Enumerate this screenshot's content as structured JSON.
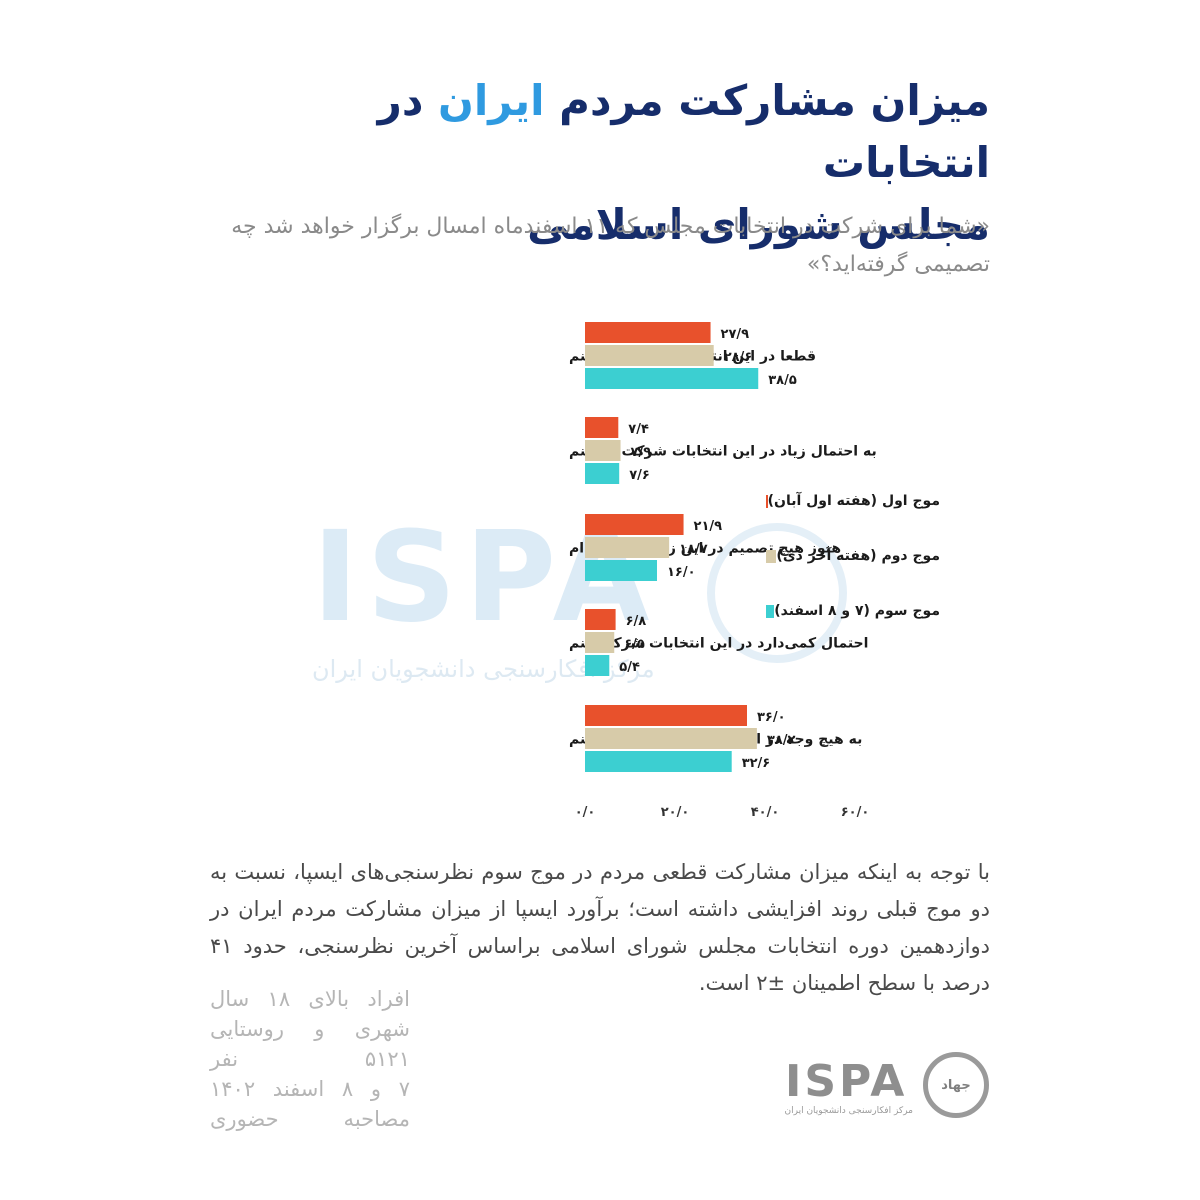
{
  "header": {
    "title_part1": "میزان مشارکت مردم ",
    "title_highlight": "ایران",
    "title_part2": " در انتخابات",
    "title_line2": "مجلس شورای اسلامی",
    "question": "«شما برای شرکت در انتخابات مجلس که ۱۱ اسفندماه امسال برگزار خواهد شد چه تصمیمی گرفته‌اید؟»"
  },
  "watermark": {
    "letters": "ISPA",
    "subtitle": "مرکز افکارسنجی دانشجویان ایران"
  },
  "chart_data": {
    "type": "bar",
    "orientation": "horizontal",
    "categories": [
      "قطعا در این انتخابات شرکت می‌کنم",
      "به احتمال زیاد در این انتخابات شرکت می‌کنم",
      "هنوز هیچ تصمیم در این زمینه نگرفته ام",
      "احتمال کمی‌دارد در این انتخابات شرکت کنم",
      "به هیچ وجه در این انتخابات شرکت نمی‌کنم"
    ],
    "series": [
      {
        "name": "موج اول (هفته اول آبان)",
        "color": "#e8512c",
        "values": [
          27.9,
          7.4,
          21.9,
          6.8,
          36.0
        ],
        "labels": [
          "۲۷/۹",
          "۷/۴",
          "۲۱/۹",
          "۶/۸",
          "۳۶/۰"
        ]
      },
      {
        "name": "موج دوم (هفته آخر دی)",
        "color": "#d7cba9",
        "values": [
          28.6,
          7.9,
          18.7,
          6.5,
          38.2
        ],
        "labels": [
          "۲۸/۶",
          "۷/۹",
          "۱۸/۷",
          "۶/۵",
          "۳۸/۲"
        ]
      },
      {
        "name": "موج سوم (۷ و ۸ اسفند)",
        "color": "#3ccfd1",
        "values": [
          38.5,
          7.6,
          16.0,
          5.4,
          32.6
        ],
        "labels": [
          "۳۸/۵",
          "۷/۶",
          "۱۶/۰",
          "۵/۴",
          "۳۲/۶"
        ]
      }
    ],
    "x_ticks": [
      0,
      20,
      40,
      60
    ],
    "x_tick_labels": [
      "۰/۰",
      "۲۰/۰",
      "۴۰/۰",
      "۶۰/۰"
    ],
    "xlim": [
      0,
      60
    ],
    "grid": false,
    "legend_position": "right"
  },
  "footnote": "با توجه به اینکه میزان مشارکت قطعی مردم در موج سوم نظرسنجی‌های ایسپا، نسبت به دو موج قبلی روند افزایشی داشته است؛ برآورد ایسپا از میزان مشارکت مردم ایران در دوازدهمین دوره انتخابات مجلس شورای اسلامی براساس آخرین نظرسنجی، حدود ۴۱ درصد با سطح اطمینان ±۲ است.",
  "details": [
    "افراد بالای ۱۸ سال",
    "شهری و روستایی",
    "۵۱۲۱ نفر",
    "۷ و ۸ اسفند ۱۴۰۲",
    "مصاحبه حضوری"
  ],
  "logo": {
    "text": "ISPA",
    "subtitle": "مرکز افکارسنجی دانشجویان ایران",
    "seal_text": "جهاد"
  }
}
